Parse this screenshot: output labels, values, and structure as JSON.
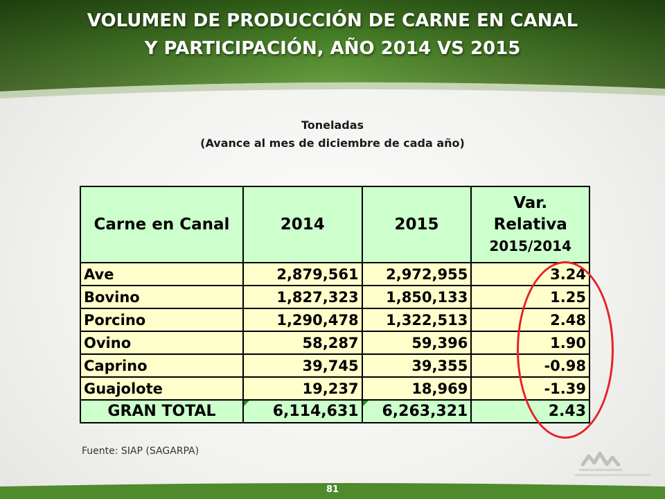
{
  "header": {
    "title_line1": "VOLUMEN DE PRODUCCIÓN DE CARNE EN CANAL",
    "title_line2": "Y PARTICIPACIÓN, AÑO 2014 VS 2015"
  },
  "subtitle": {
    "line1": "Toneladas",
    "line2": "(Avance al mes de diciembre de cada año)"
  },
  "table": {
    "headers": {
      "category": "Carne en Canal",
      "year1": "2014",
      "year2": "2015",
      "var_line1": "Var.",
      "var_line2": "Relativa",
      "var_line3": "2015/2014"
    },
    "rows": [
      {
        "name": "Ave",
        "y2014": "2,879,561",
        "y2015": "2,972,955",
        "var": "3.24"
      },
      {
        "name": "Bovino",
        "y2014": "1,827,323",
        "y2015": "1,850,133",
        "var": "1.25"
      },
      {
        "name": "Porcino",
        "y2014": "1,290,478",
        "y2015": "1,322,513",
        "var": "2.48"
      },
      {
        "name": "Ovino",
        "y2014": "58,287",
        "y2015": "59,396",
        "var": "1.90"
      },
      {
        "name": "Caprino",
        "y2014": "39,745",
        "y2015": "39,355",
        "var": "-0.98"
      },
      {
        "name": "Guajolote",
        "y2014": "19,237",
        "y2015": "18,969",
        "var": "-1.39"
      }
    ],
    "total": {
      "name": "GRAN TOTAL",
      "y2014": "6,114,631",
      "y2015": "6,263,321",
      "var": "2.43"
    }
  },
  "source": "Fuente: SIAP (SAGARPA)",
  "page_number": "81",
  "colors": {
    "header_green": "#3f7a24",
    "header_header_cells": "#ccffcc",
    "data_cells": "#ffffcc",
    "highlight_circle": "#e8202a"
  }
}
